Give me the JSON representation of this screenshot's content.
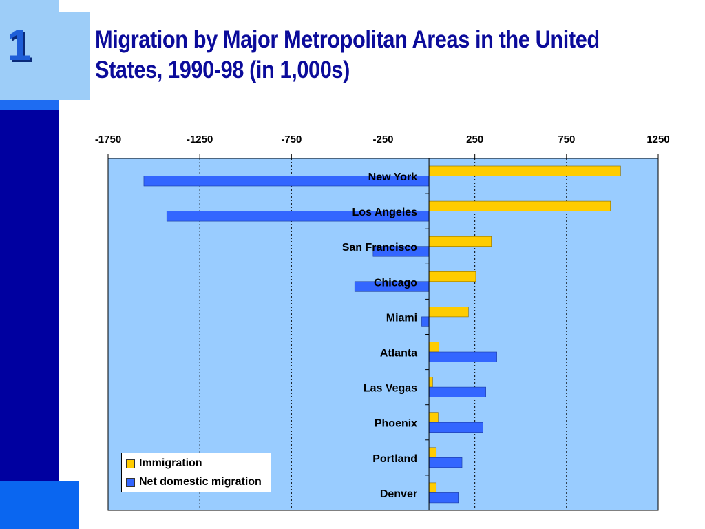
{
  "slide": {
    "number": "1",
    "title": "Migration by Major Metropolitan Areas in the United States, 1990-98 (in 1,000s)"
  },
  "colors": {
    "immigration": "#ffcc00",
    "domestic": "#3366ff",
    "plot_bg": "#99ccff"
  },
  "chart_data": {
    "type": "bar",
    "orientation": "horizontal",
    "title": "",
    "xlabel": "",
    "ylabel": "",
    "xlim": [
      -1750,
      1250
    ],
    "xticks": [
      -1750,
      -1250,
      -750,
      -250,
      250,
      750,
      1250
    ],
    "grid": true,
    "legend_position": "bottom-left",
    "categories": [
      "New York",
      "Los Angeles",
      "San Francisco",
      "Chicago",
      "Miami",
      "Atlanta",
      "Las Vegas",
      "Phoenix",
      "Portland",
      "Denver"
    ],
    "series": [
      {
        "name": "Immigration",
        "values": [
          1045,
          990,
          340,
          255,
          215,
          55,
          20,
          50,
          40,
          40
        ]
      },
      {
        "name": "Net domestic migration",
        "values": [
          -1555,
          -1430,
          -305,
          -405,
          -40,
          370,
          310,
          295,
          180,
          160
        ]
      }
    ]
  }
}
